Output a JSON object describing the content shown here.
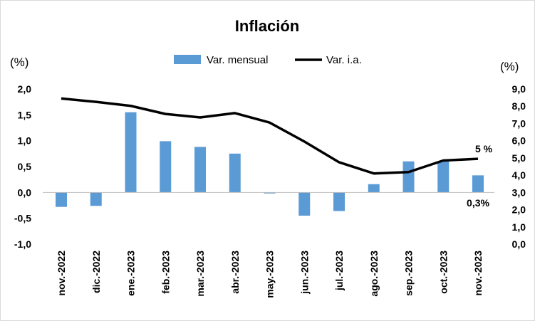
{
  "chart_data": {
    "type": "bar+line",
    "title": "Inflación",
    "categories": [
      "nov.-2022",
      "dic.-2022",
      "ene.-2023",
      "feb.-2023",
      "mar.-2023",
      "abr.-2023",
      "may.-2023",
      "jun.-2023",
      "jul.-2023",
      "ago.-2023",
      "sep.-2023",
      "oct.-2023",
      "nov.-2023"
    ],
    "series": [
      {
        "name": "Var. mensual",
        "type": "bar",
        "axis": "left",
        "color": "#5b9bd5",
        "values": [
          -0.28,
          -0.26,
          1.55,
          0.99,
          0.88,
          0.75,
          -0.02,
          -0.45,
          -0.36,
          0.16,
          0.6,
          0.6,
          0.33
        ]
      },
      {
        "name": "Var. i.a.",
        "type": "line",
        "axis": "right",
        "color": "#000000",
        "values": [
          8.45,
          8.25,
          8.02,
          7.55,
          7.35,
          7.6,
          7.05,
          5.95,
          4.75,
          4.1,
          4.18,
          4.85,
          4.95
        ]
      }
    ],
    "left_axis": {
      "unit": "(%)",
      "ylim": [
        -1.0,
        2.0
      ],
      "ticks": [
        "2,0",
        "1,5",
        "1,0",
        "0,5",
        "0,0",
        "-0,5",
        "-1,0"
      ]
    },
    "right_axis": {
      "unit": "(%)",
      "ylim": [
        0.0,
        9.0
      ],
      "ticks": [
        "9,0",
        "8,0",
        "7,0",
        "6,0",
        "5,0",
        "4,0",
        "3,0",
        "2,0",
        "1,0",
        "0,0"
      ]
    },
    "annotations": {
      "line_last": "5 %",
      "bar_last": "0,3%"
    },
    "annotation_colors": {
      "line_last": "#000000",
      "bar_last": "#2e75b6"
    },
    "legend_position": "top",
    "grid": false
  }
}
